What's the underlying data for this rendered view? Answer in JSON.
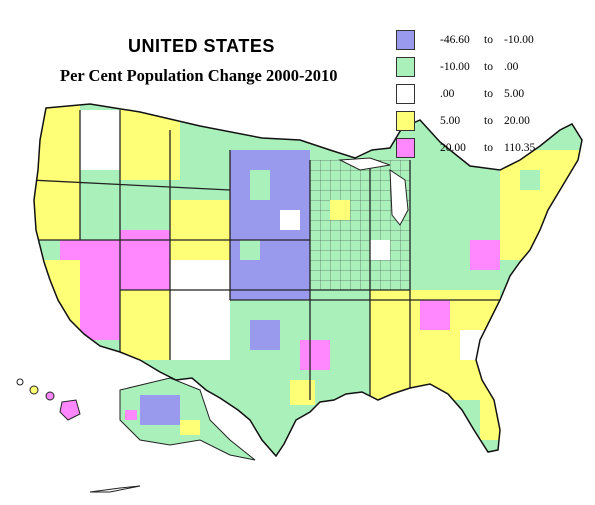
{
  "title": "UNITED STATES",
  "subtitle": "Per Cent Population Change 2000-2010",
  "legend": [
    {
      "low": "-46.60",
      "to": "to",
      "high": "-10.00",
      "color": "#9999ee"
    },
    {
      "low": "-10.00",
      "to": "to",
      "high": ".00",
      "color": "#aaf0bb"
    },
    {
      "low": ".00",
      "to": "to",
      "high": "5.00",
      "color": "#ffffff"
    },
    {
      "low": "5.00",
      "to": "to",
      "high": "20.00",
      "color": "#ffff77"
    },
    {
      "low": "20.00",
      "to": "to",
      "high": "110.35",
      "color": "#ff88ff"
    }
  ],
  "colors": {
    "decline_large": "#9999ee",
    "decline_small": "#aaf0bb",
    "growth_low": "#ffffff",
    "growth_mid": "#ffff77",
    "growth_high": "#ff88ff",
    "border": "#222222"
  }
}
